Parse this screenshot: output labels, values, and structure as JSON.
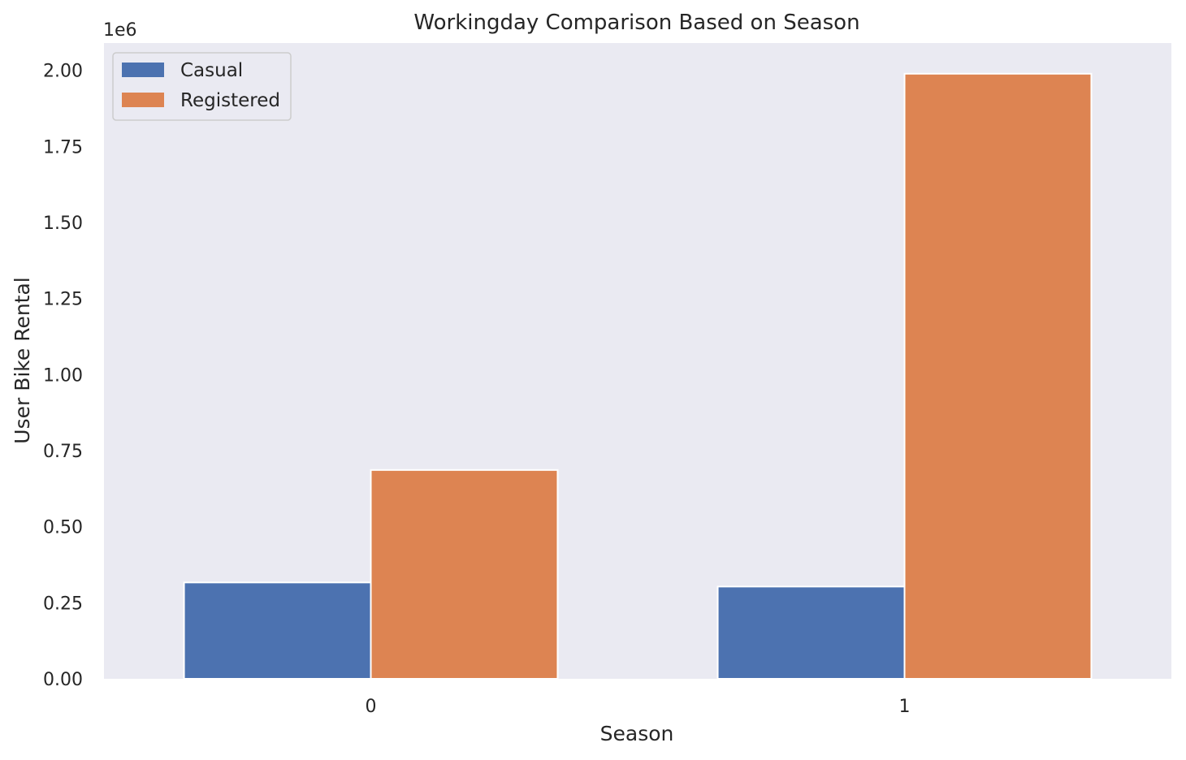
{
  "chart_data": {
    "type": "bar",
    "title": "Workingday Comparison Based on Season",
    "xlabel": "Season",
    "ylabel": "User Bike Rental",
    "y_exponent_label": "1e6",
    "categories": [
      "0",
      "1"
    ],
    "series": [
      {
        "name": "Casual",
        "color": "#4c72b0",
        "values": [
          316732,
          303285
        ]
      },
      {
        "name": "Registered",
        "color": "#dd8452",
        "values": [
          686411,
          1989125
        ]
      }
    ],
    "ylim": [
      0,
      2090000
    ],
    "yticks": [
      0,
      250000,
      500000,
      750000,
      1000000,
      1250000,
      1500000,
      1750000,
      2000000
    ],
    "ytick_labels": [
      "0.00",
      "0.25",
      "0.50",
      "0.75",
      "1.00",
      "1.25",
      "1.50",
      "1.75",
      "2.00"
    ],
    "grid": false,
    "legend_position": "top-left",
    "plot_background": "#eaeaf2"
  }
}
